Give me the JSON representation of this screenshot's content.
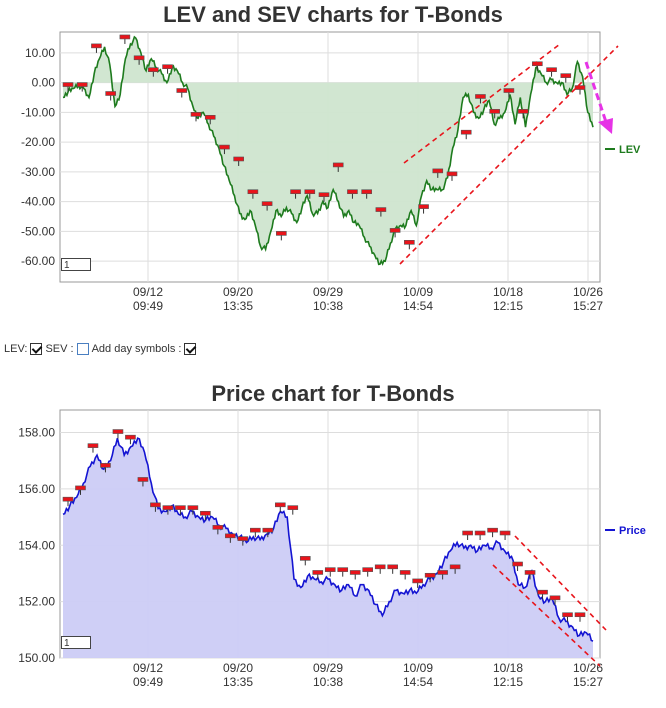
{
  "lev_chart": {
    "title": "LEV and SEV charts for T-Bonds",
    "legend_label": "LEV",
    "zoom_value": "1",
    "line_color": "#1e7b1e",
    "fill_color": "#cfe5cf",
    "marker_color": "#e8141b",
    "trend_color": "#e8141b",
    "arrow_color": "#e633e6"
  },
  "price_chart": {
    "title": "Price chart for T-Bonds",
    "legend_label": "Price",
    "zoom_value": "1",
    "line_color": "#1414d2",
    "fill_color": "#ccccf5"
  },
  "controls": {
    "lev_label": "LEV:",
    "sev_label": "SEV :",
    "day_symbols_label": "Add day symbols :",
    "lev_checked": true,
    "sev_checked": false,
    "day_symbols_checked": true
  },
  "chart_data": [
    {
      "type": "line",
      "title": "LEV and SEV charts for T-Bonds",
      "ylim": [
        -67,
        17
      ],
      "y_ticks": [
        "10.00",
        "0.00",
        "-10.00",
        "-20.00",
        "-30.00",
        "-40.00",
        "-50.00",
        "-60.00"
      ],
      "y_tick_values": [
        10,
        0,
        -10,
        -20,
        -30,
        -40,
        -50,
        -60
      ],
      "x_ticks": [
        {
          "date": "09/12",
          "time": "09:49"
        },
        {
          "date": "09/20",
          "time": "13:35"
        },
        {
          "date": "09/29",
          "time": "10:38"
        },
        {
          "date": "10/09",
          "time": "14:54"
        },
        {
          "date": "10/18",
          "time": "12:15"
        },
        {
          "date": "10/26",
          "time": "15:27"
        }
      ],
      "series": [
        {
          "name": "LEV",
          "values": [
            -5,
            -3,
            -2,
            -1,
            -2,
            -5,
            3,
            8,
            12,
            6,
            -8,
            -4,
            8,
            13,
            15,
            10,
            4,
            8,
            5,
            3,
            0,
            5,
            4,
            0,
            -2,
            -8,
            -12,
            -10,
            -14,
            -18,
            -22,
            -28,
            -33,
            -38,
            -44,
            -46,
            -43,
            -48,
            -55,
            -56,
            -50,
            -43,
            -45,
            -42,
            -44,
            -47,
            -42,
            -38,
            -44,
            -44,
            -40,
            -42,
            -36,
            -40,
            -45,
            -43,
            -47,
            -48,
            -52,
            -55,
            -58,
            -61,
            -60,
            -54,
            -49,
            -48,
            -48,
            -43,
            -48,
            -38,
            -33,
            -36,
            -36,
            -36,
            -32,
            -22,
            -16,
            -5,
            -4,
            -10,
            -12,
            -9,
            -6,
            -14,
            -12,
            -10,
            -4,
            -14,
            -5,
            -15,
            -4,
            5,
            3,
            0,
            1,
            0,
            0,
            -4,
            -2,
            7,
            2,
            -10,
            -15
          ]
        }
      ],
      "markers": [
        -1,
        -1,
        12,
        -4,
        15,
        8,
        4,
        5,
        -3,
        -11,
        -12,
        -22,
        -26,
        -37,
        -41,
        -51,
        -37,
        -37,
        -38,
        -28,
        -37,
        -37,
        -43,
        -50,
        -54,
        -42,
        -30,
        -31,
        -17,
        -5,
        -10,
        -3,
        -10,
        6,
        4,
        2,
        -2
      ],
      "annotations": "red dashed trend channel lines; magenta dashed down arrow at right"
    },
    {
      "type": "area",
      "title": "Price chart for T-Bonds",
      "ylim": [
        150,
        158.8
      ],
      "y_ticks": [
        "158.00",
        "156.00",
        "154.00",
        "152.00",
        "150.00"
      ],
      "y_tick_values": [
        158,
        156,
        154,
        152,
        150
      ],
      "x_ticks": [
        {
          "date": "09/12",
          "time": "09:49"
        },
        {
          "date": "09/20",
          "time": "13:35"
        },
        {
          "date": "09/29",
          "time": "10:38"
        },
        {
          "date": "10/09",
          "time": "14:54"
        },
        {
          "date": "10/18",
          "time": "12:15"
        },
        {
          "date": "10/26",
          "time": "15:27"
        }
      ],
      "series": [
        {
          "name": "Price",
          "values": [
            155.1,
            155.4,
            155.7,
            156.2,
            156.8,
            157.2,
            156.7,
            157.0,
            157.8,
            157.2,
            157.5,
            157.8,
            157.3,
            156.2,
            155.3,
            155.2,
            155.4,
            155.1,
            155.0,
            155.2,
            155.0,
            154.9,
            155.0,
            154.7,
            154.6,
            154.4,
            154.3,
            154.1,
            154.3,
            154.2,
            154.4,
            154.6,
            155.2,
            155.0,
            152.8,
            152.5,
            152.9,
            152.8,
            152.7,
            152.8,
            152.6,
            152.4,
            152.6,
            152.2,
            152.6,
            152.4,
            151.9,
            151.5,
            152.0,
            152.4,
            152.3,
            152.4,
            152.3,
            152.6,
            152.8,
            153.0,
            153.4,
            153.8,
            154.1,
            153.9,
            154.0,
            153.8,
            154.0,
            153.9,
            154.1,
            153.8,
            153.6,
            152.6,
            152.5,
            153.1,
            152.2,
            152.0,
            152.1,
            151.4,
            151.3,
            151.1,
            150.8,
            150.9,
            150.6
          ]
        }
      ],
      "markers": [
        155.6,
        156.0,
        157.5,
        156.8,
        158.0,
        157.8,
        156.3,
        155.4,
        155.3,
        155.3,
        155.3,
        155.1,
        154.6,
        154.3,
        154.2,
        154.5,
        154.5,
        155.4,
        155.3,
        153.5,
        153.0,
        153.1,
        153.1,
        153.0,
        153.1,
        153.2,
        153.2,
        153.0,
        152.7,
        152.9,
        153.0,
        153.2,
        154.4,
        154.4,
        154.5,
        154.4,
        153.3,
        153.0,
        152.3,
        152.1,
        151.5,
        151.5
      ]
    }
  ]
}
